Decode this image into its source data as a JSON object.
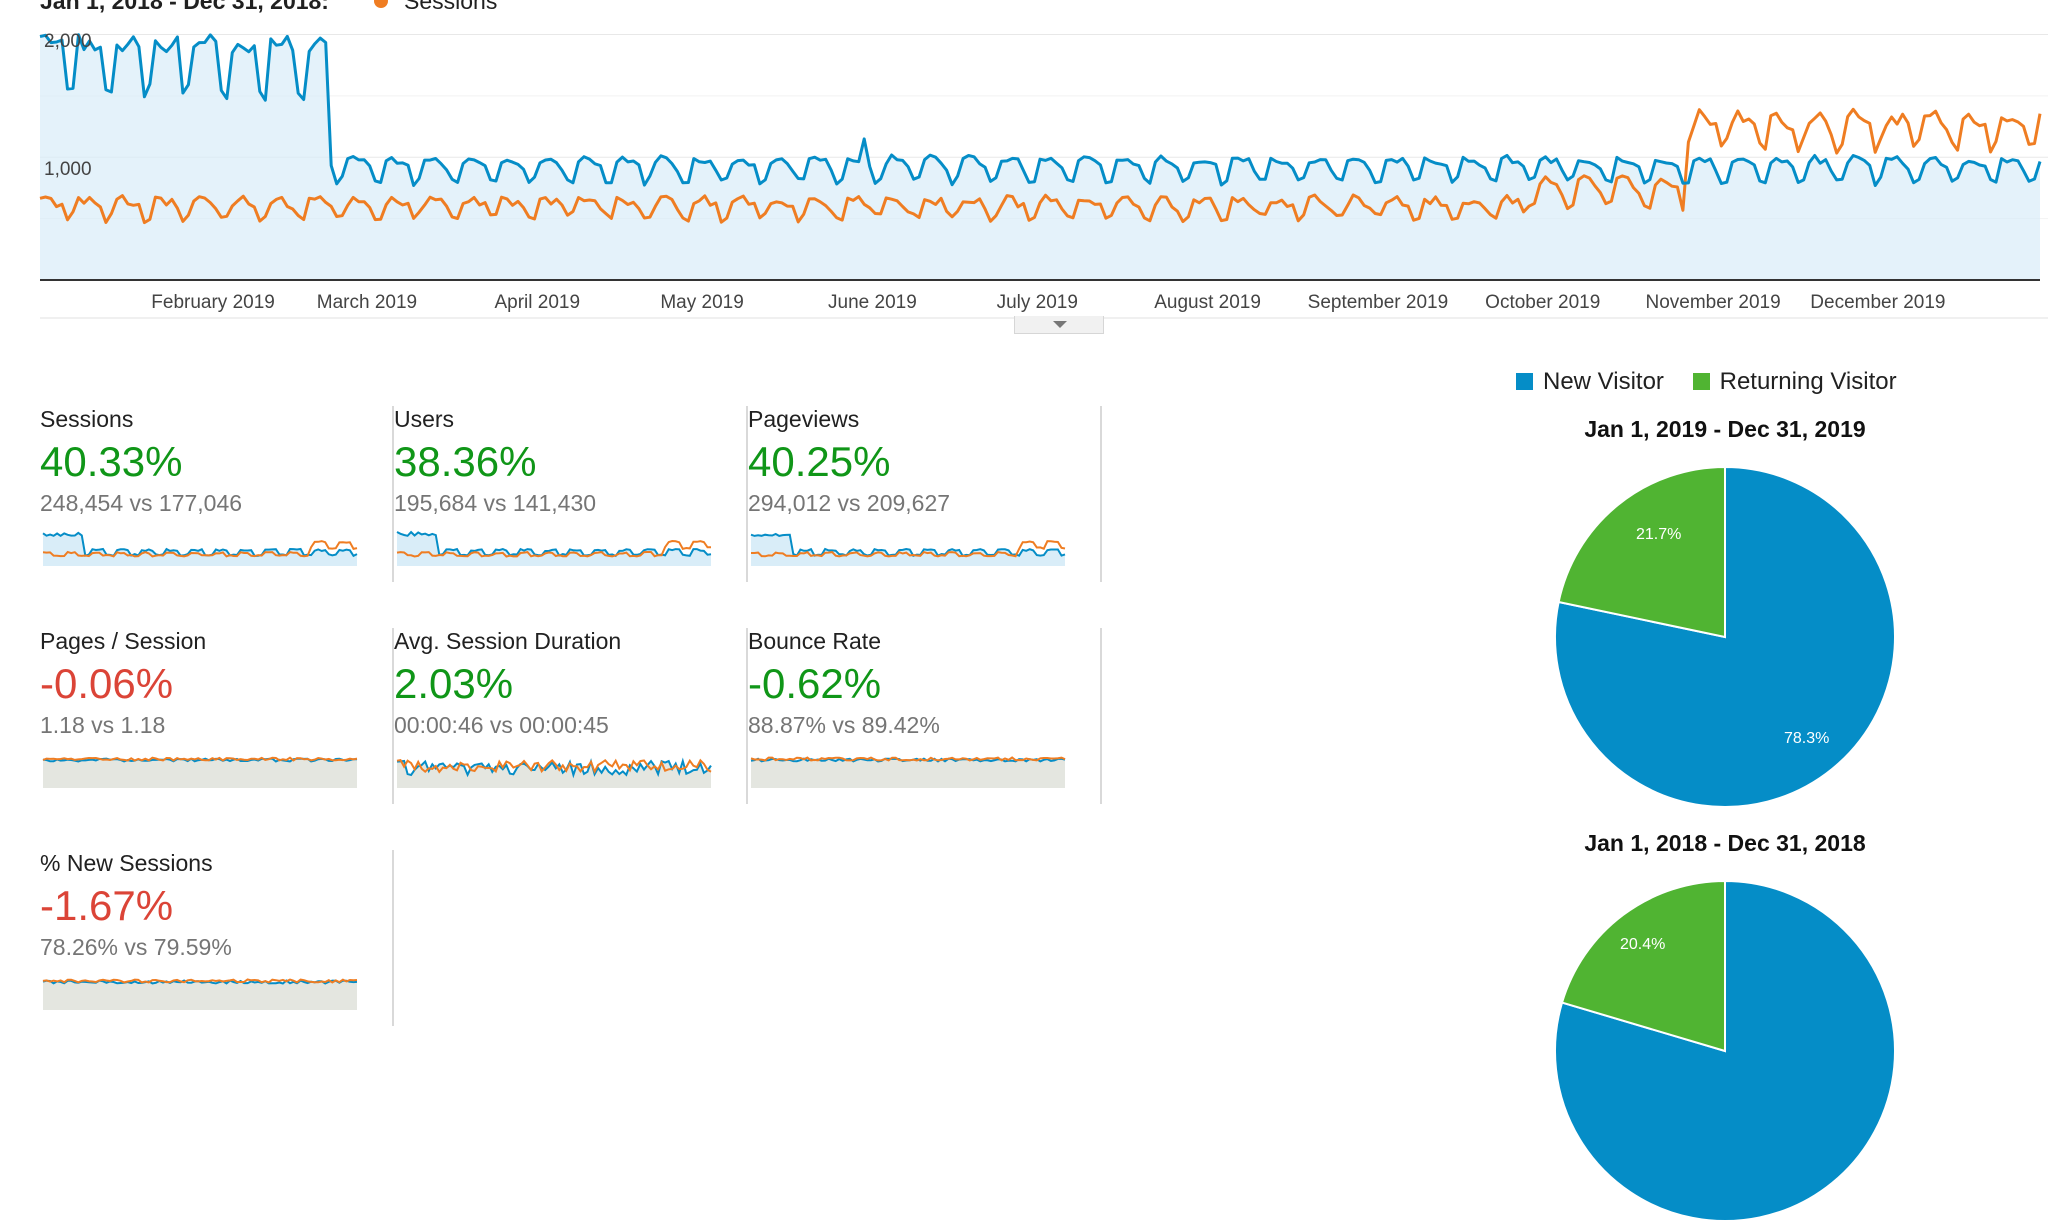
{
  "colors": {
    "current": "#058dc7",
    "previous": "#ef7d22",
    "positive": "#109618",
    "negative": "#db4437",
    "new_visitor": "#058dc7",
    "returning_visitor": "#50b432"
  },
  "header": {
    "compare_label": "Jan 1, 2018 - Dec 31, 2018:",
    "series_label": "Sessions",
    "series_icon": "orange-dot-icon"
  },
  "main_chart": {
    "y_ticks": [
      "2,000",
      "1,000"
    ],
    "months": [
      "February 2019",
      "March 2019",
      "April 2019",
      "May 2019",
      "June 2019",
      "July 2019",
      "August 2019",
      "September 2019",
      "October 2019",
      "November 2019",
      "December 2019"
    ],
    "expander_icon": "triangle-down-icon"
  },
  "chart_data": {
    "type": "line",
    "title": "",
    "x_range": [
      "2019-01-01",
      "2019-12-31"
    ],
    "months": [
      "February 2019",
      "March 2019",
      "April 2019",
      "May 2019",
      "June 2019",
      "July 2019",
      "August 2019",
      "September 2019",
      "October 2019",
      "November 2019",
      "December 2019"
    ],
    "ylim": [
      0,
      2200
    ],
    "y_ticks": [
      1000,
      2000
    ],
    "grid": true,
    "series": [
      {
        "name": "",
        "color": "#058dc7",
        "shape": "high ~1800 in January and February 2019, drops to ~600-900 weekly oscillation from late February onward",
        "approx_range": [
          400,
          2000
        ]
      },
      {
        "name": "Sessions",
        "color": "#ef7d22",
        "shape": "~300-700 weekly oscillation, rising to ~800-1400 from November",
        "approx_range": [
          150,
          1400
        ]
      }
    ]
  },
  "metrics": [
    {
      "title": "Sessions",
      "change": "40.33%",
      "compare": "248,454 vs 177,046",
      "trend": "positive"
    },
    {
      "title": "Users",
      "change": "38.36%",
      "compare": "195,684 vs 141,430",
      "trend": "positive"
    },
    {
      "title": "Pageviews",
      "change": "40.25%",
      "compare": "294,012 vs 209,627",
      "trend": "positive"
    },
    {
      "title": "Pages / Session",
      "change": "-0.06%",
      "compare": "1.18 vs 1.18",
      "trend": "negative"
    },
    {
      "title": "Avg. Session Duration",
      "change": "2.03%",
      "compare": "00:00:46 vs 00:00:45",
      "trend": "positive"
    },
    {
      "title": "Bounce Rate",
      "change": "-0.62%",
      "compare": "88.87% vs 89.42%",
      "trend": "positive"
    },
    {
      "title": "% New Sessions",
      "change": "-1.67%",
      "compare": "78.26% vs 79.59%",
      "trend": "negative"
    }
  ],
  "legend": {
    "items": [
      {
        "label": "New Visitor",
        "color": "#058dc7"
      },
      {
        "label": "Returning Visitor",
        "color": "#50b432"
      }
    ]
  },
  "pies": [
    {
      "title": "Jan 1, 2019 - Dec 31, 2019",
      "new_pct": 78.3,
      "returning_pct": 21.7,
      "new_label": "78.3%",
      "returning_label": "21.7%"
    },
    {
      "title": "Jan 1, 2018 - Dec 31, 2018",
      "new_pct": 79.6,
      "returning_pct": 20.4,
      "new_label": "",
      "returning_label": "20.4%"
    }
  ]
}
